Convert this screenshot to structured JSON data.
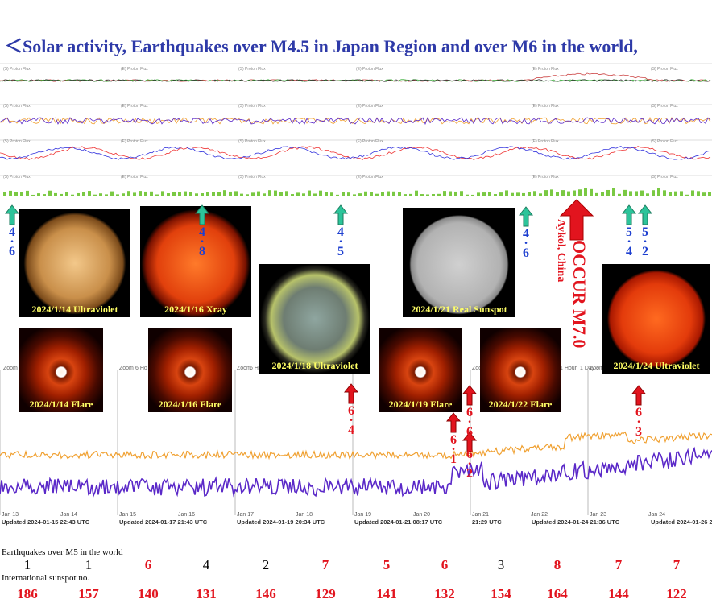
{
  "title": "＜Solar activity, Earthquakes over M4.5 in Japan Region and over M6 in the world,",
  "panel_labels": [
    "(S) Proton Flux",
    "(E) Proton Flux",
    "(S) Proton Flux",
    "(E) Proton Flux",
    "(E) Proton Flux",
    "(S) Proton Flux"
  ],
  "photos": [
    {
      "caption": "2024/1/14 Ultraviolet",
      "kind": "uv-gold"
    },
    {
      "caption": "2024/1/16 Xray",
      "kind": "xray"
    },
    {
      "caption": "2024/1/18 Ultraviolet",
      "kind": "uv-multi"
    },
    {
      "caption": "2024/1/21 Real Sunspot",
      "kind": "white"
    },
    {
      "caption": "2024/1/24 Ultraviolet",
      "kind": "uv-red"
    },
    {
      "caption": "2024/1/14 Flare",
      "kind": "corona"
    },
    {
      "caption": "2024/1/16 Flare",
      "kind": "corona"
    },
    {
      "caption": "2024/1/19 Flare",
      "kind": "corona"
    },
    {
      "caption": "2024/1/22 Flare",
      "kind": "corona"
    }
  ],
  "japan_quakes": [
    {
      "mag": "4.6",
      "top": "4",
      "bottom": "6"
    },
    {
      "mag": "4.8",
      "top": "4",
      "bottom": "8"
    },
    {
      "mag": "4.5",
      "top": "4",
      "bottom": "5"
    },
    {
      "mag": "4.6",
      "top": "4",
      "bottom": "6"
    },
    {
      "mag": "5.4",
      "top": "5",
      "bottom": "4"
    },
    {
      "mag": "5.2",
      "top": "5",
      "bottom": "2"
    }
  ],
  "world_quakes": [
    {
      "mag": "6.4",
      "top": "6",
      "bottom": "4"
    },
    {
      "mag": "6.1",
      "top": "6",
      "bottom": "1"
    },
    {
      "mag": "6.6",
      "top": "6",
      "bottom": "6"
    },
    {
      "mag": "6.2",
      "top": "6",
      "bottom": "2"
    },
    {
      "mag": "6.3",
      "top": "6",
      "bottom": "3"
    }
  ],
  "big_event": {
    "occur": "OCCUR M7.0",
    "place": "Aykol, China"
  },
  "zoom_labels": [
    "Zoom",
    "Zoom",
    "Zoom",
    "Zoom",
    "Zoom",
    "Zoom"
  ],
  "zoom_extras": [
    "6 Ho",
    "6 Ho",
    "1 Hour",
    "1 Day",
    "3 D"
  ],
  "x_ticks": [
    "Jan 13",
    "Jan 14",
    "Jan 15",
    "Jan 16",
    "Jan 17",
    "Jan 18",
    "Jan 19",
    "Jan 20",
    "Jan 21",
    "Jan 22",
    "Jan 23",
    "Jan 24"
  ],
  "updated": [
    "Updated 2024-01-15 22:43 UTC",
    "Updated 2024-01-17 21:43 UTC",
    "Updated 2024-01-19 20:34 UTC",
    "Updated 2024-01-21 08:17 UTC",
    "21:29 UTC",
    "Updated 2024-01-24 21:36 UTC",
    "Updated 2024-01-26 2"
  ],
  "eq_label": "Earthquakes over M5 in the world",
  "ss_label": "International sunspot no.",
  "chart_data": {
    "type": "table",
    "columns": [
      "1/13",
      "1/14",
      "1/15",
      "1/16",
      "1/17",
      "1/18",
      "1/19",
      "1/20",
      "1/21",
      "1/22",
      "1/23",
      "1/24"
    ],
    "earthquakes_over_m5_world": [
      1,
      1,
      6,
      4,
      2,
      7,
      5,
      6,
      3,
      8,
      7,
      7
    ],
    "earthquake_colors": [
      "#000000",
      "#000000",
      "#e2141e",
      "#000000",
      "#000000",
      "#e2141e",
      "#e2141e",
      "#e2141e",
      "#000000",
      "#e2141e",
      "#e2141e",
      "#e2141e"
    ],
    "international_sunspot_no": [
      186,
      157,
      140,
      131,
      146,
      129,
      141,
      132,
      154,
      164,
      144,
      122
    ],
    "series_colors": {
      "solar_wind_orange": "#f0a030",
      "purple": "#5a28c8"
    }
  }
}
